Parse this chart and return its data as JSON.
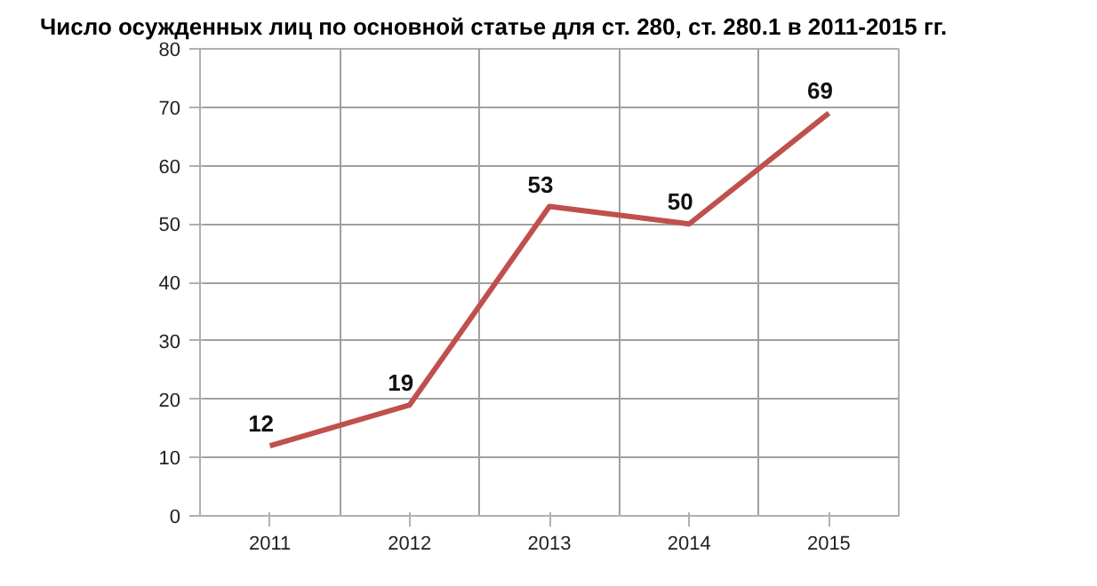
{
  "chart_data": {
    "type": "line",
    "title": "Число осужденных лиц по основной статье для ст. 280, ст. 280.1 в 2011-2015 гг.",
    "categories": [
      "2011",
      "2012",
      "2013",
      "2014",
      "2015"
    ],
    "series": [
      {
        "color": "#c0504d",
        "values": [
          12,
          19,
          53,
          50,
          69
        ]
      }
    ],
    "ylim": [
      0,
      80
    ],
    "yticks": [
      0,
      10,
      20,
      30,
      40,
      50,
      60,
      70,
      80
    ],
    "grid": true,
    "data_labels": true,
    "marker": "none",
    "line_style": "solid"
  }
}
